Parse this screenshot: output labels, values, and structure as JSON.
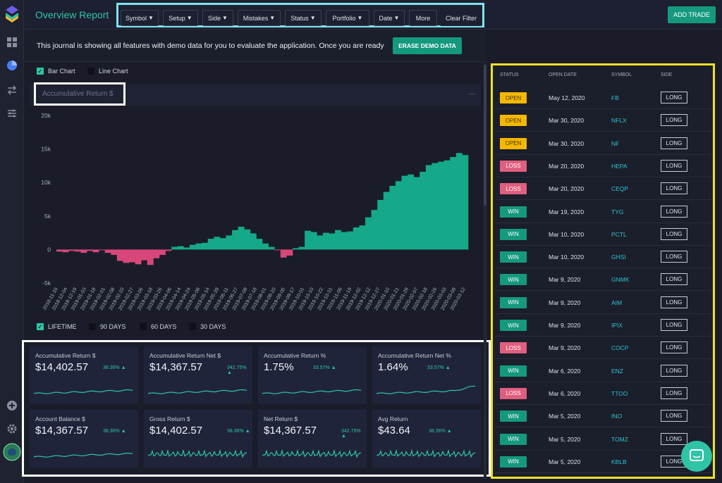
{
  "header": {
    "title": "Overview Report",
    "filters": [
      "Symbol",
      "Setup",
      "Side",
      "Mistakes",
      "Status",
      "Portfolio",
      "Date"
    ],
    "more": "More",
    "clear": "Clear Filter",
    "add_trade": "ADD TRADE"
  },
  "banner": {
    "text": "This journal is showing all features with demo data for you to evaluate the application. Once you are ready",
    "erase": "ERASE DEMO DATA"
  },
  "chart_toggle": {
    "bar": "Bar Chart",
    "line": "Line Chart",
    "bar_checked": true,
    "line_checked": false
  },
  "range": {
    "lifetime": "LIFETIME",
    "d90": "90 DAYS",
    "d60": "60 DAYS",
    "d30": "30 DAYS",
    "selected": "lifetime"
  },
  "chart_data": {
    "type": "bar",
    "title": "Accumulative Return $",
    "y_ticks": [
      "20k",
      "15k",
      "10k",
      "5k",
      "0",
      "-5k"
    ],
    "ylim": [
      -5000,
      20000
    ],
    "x_ticks": [
      "2018-11-16",
      "2018-12-04",
      "2018-12-19",
      "2019-01-03",
      "2019-01-18",
      "2019-02-01",
      "2019-02-08",
      "2019-02-20",
      "2019-02-27",
      "2019-03-06",
      "2019-03-18",
      "2019-03-26",
      "2019-04-06",
      "2019-04-14",
      "2019-04-24",
      "2019-05-08",
      "2019-05-14",
      "2019-05-28",
      "2019-06-11",
      "2019-06-27",
      "2019-07-08",
      "2019-07-18",
      "2019-08-01",
      "2019-08-20",
      "2019-09-05",
      "2019-09-17",
      "2019-10-01",
      "2019-10-10",
      "2019-10-22",
      "2019-10-31",
      "2019-11-06",
      "2019-11-19",
      "2019-12-02",
      "2019-12-12",
      "2019-12-27",
      "2020-01-10",
      "2020-01-21",
      "2020-01-29",
      "2020-02-07",
      "2020-02-18",
      "2020-02-26",
      "2020-03-03",
      "2020-03-09",
      "2020-03-12"
    ],
    "series_values": [
      -300,
      -400,
      -200,
      -300,
      -500,
      -200,
      -400,
      -100,
      -500,
      -800,
      -1700,
      -2000,
      -1900,
      -2200,
      -1600,
      -2300,
      -1300,
      -800,
      -200,
      400,
      500,
      300,
      700,
      900,
      1000,
      1600,
      1900,
      1700,
      2100,
      2900,
      3400,
      3000,
      2400,
      1600,
      900,
      400,
      -100,
      -1200,
      -900,
      200,
      400,
      2800,
      2600,
      2100,
      2500,
      2400,
      2900,
      2600,
      2700,
      3300,
      3600,
      4800,
      5900,
      7400,
      8600,
      9500,
      10200,
      11000,
      11200,
      10800,
      11600,
      12600,
      12900,
      13100,
      13300,
      13800,
      14400,
      14100
    ]
  },
  "stats": [
    {
      "title": "Accumulative Return $",
      "value": "$14,402.57",
      "pct": "38.36%"
    },
    {
      "title": "Accumulative Return Net $",
      "value": "$14,367.57",
      "pct": "342.75%"
    },
    {
      "title": "Accumulative Return %",
      "value": "1.75%",
      "pct": "33.57%"
    },
    {
      "title": "Accumulative Return Net %",
      "value": "1.64%",
      "pct": "33.57%"
    },
    {
      "title": "Account Balance $",
      "value": "$14,367.57",
      "pct": "38.36%"
    },
    {
      "title": "Gross Return $",
      "value": "$14,402.57",
      "pct": "38.36%"
    },
    {
      "title": "Net Return $",
      "value": "$14,367.57",
      "pct": "342.75%"
    },
    {
      "title": "Avg Return",
      "value": "$43.64",
      "pct": "38.36%"
    }
  ],
  "table": {
    "headers": {
      "status": "STATUS",
      "open_date": "OPEN DATE",
      "symbol": "SYMBOL",
      "side": "SIDE"
    },
    "rows": [
      {
        "status": "OPEN",
        "date": "May 12, 2020",
        "symbol": "FB",
        "side": "LONG"
      },
      {
        "status": "OPEN",
        "date": "Mar 30, 2020",
        "symbol": "NFLX",
        "side": "LONG"
      },
      {
        "status": "OPEN",
        "date": "Mar 30, 2020",
        "symbol": "NF",
        "side": "LONG"
      },
      {
        "status": "LOSS",
        "date": "Mar 20, 2020",
        "symbol": "HEPA",
        "side": "LONG"
      },
      {
        "status": "LOSS",
        "date": "Mar 20, 2020",
        "symbol": "CEQP",
        "side": "LONG"
      },
      {
        "status": "WIN",
        "date": "Mar 19, 2020",
        "symbol": "TYG",
        "side": "LONG"
      },
      {
        "status": "WIN",
        "date": "Mar 10, 2020",
        "symbol": "PCTL",
        "side": "LONG"
      },
      {
        "status": "WIN",
        "date": "Mar 10, 2020",
        "symbol": "GHSI",
        "side": "LONG"
      },
      {
        "status": "WIN",
        "date": "Mar 9, 2020",
        "symbol": "GNMK",
        "side": "LONG"
      },
      {
        "status": "WIN",
        "date": "Mar 9, 2020",
        "symbol": "AIM",
        "side": "LONG"
      },
      {
        "status": "WIN",
        "date": "Mar 9, 2020",
        "symbol": "IPIX",
        "side": "LONG"
      },
      {
        "status": "LOSS",
        "date": "Mar 9, 2020",
        "symbol": "COCP",
        "side": "LONG"
      },
      {
        "status": "WIN",
        "date": "Mar 6, 2020",
        "symbol": "ENZ",
        "side": "LONG"
      },
      {
        "status": "LOSS",
        "date": "Mar 6, 2020",
        "symbol": "TTOO",
        "side": "LONG"
      },
      {
        "status": "WIN",
        "date": "Mar 5, 2020",
        "symbol": "INO",
        "side": "LONG"
      },
      {
        "status": "WIN",
        "date": "Mar 5, 2020",
        "symbol": "TOMZ",
        "side": "LONG"
      },
      {
        "status": "WIN",
        "date": "Mar 5, 2020",
        "symbol": "KBLB",
        "side": "LONG"
      }
    ]
  },
  "colors": {
    "accent": "#2ec4a6",
    "loss": "#e05e7e",
    "open": "#f5b800",
    "bg": "#1a1d29"
  }
}
